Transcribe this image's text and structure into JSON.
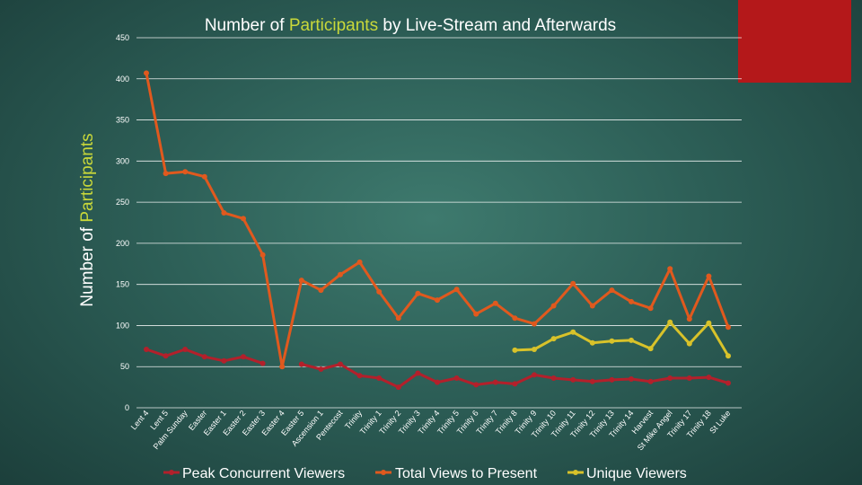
{
  "colors": {
    "peak": "#b3202b",
    "total": "#e0591e",
    "unique": "#d8c22a",
    "accent_text": "#c9d83a",
    "grid": "#ffffff"
  },
  "chart_data": {
    "type": "line",
    "title": "Number of Participants by Live-Stream and Afterwards",
    "title_parts": {
      "before": "Number of ",
      "highlight": "Participants",
      "after": " by Live-Stream and Afterwards"
    },
    "ylabel": "Number of Participants",
    "ylabel_parts": {
      "before": "Number of ",
      "highlight": "Participants"
    },
    "xlabel": "",
    "ylim": [
      0,
      450
    ],
    "yticks": [
      0,
      50,
      100,
      150,
      200,
      250,
      300,
      350,
      400,
      450
    ],
    "grid": true,
    "legend_position": "bottom",
    "categories": [
      "Lent 4",
      "Lent 5",
      "Palm Sunday",
      "Easter",
      "Easter 1",
      "Easter 2",
      "Easter 3",
      "Easter 4",
      "Easter 5",
      "Ascension 1",
      "Pentecost",
      "Trinity",
      "Trinity 1",
      "Trinity 2",
      "Trinity 3",
      "Trinity 4",
      "Trinity 5",
      "Trinity 6",
      "Trinity 7",
      "Trinity 8",
      "Trinity 9",
      "Trinity 10",
      "Trinity 11",
      "Trinity 12",
      "Trinity 13",
      "Trinity 14",
      "Harvest",
      "St Mike Angel",
      "Trinity 17",
      "Trinity 18",
      "St Luke"
    ],
    "series": [
      {
        "name": "Peak Concurrent Viewers",
        "color_key": "peak",
        "values": [
          71,
          63,
          71,
          62,
          57,
          62,
          54,
          null,
          53,
          47,
          53,
          39,
          36,
          25,
          42,
          31,
          36,
          28,
          31,
          29,
          40,
          36,
          34,
          32,
          34,
          35,
          32,
          36,
          36,
          37,
          30
        ]
      },
      {
        "name": "Total Views to Present",
        "color_key": "total",
        "values": [
          407,
          285,
          287,
          281,
          237,
          230,
          186,
          50,
          155,
          143,
          162,
          177,
          141,
          109,
          139,
          131,
          144,
          114,
          127,
          109,
          102,
          124,
          151,
          124,
          143,
          129,
          121,
          169,
          108,
          160,
          98
        ]
      },
      {
        "name": "Unique Viewers",
        "color_key": "unique",
        "values": [
          null,
          null,
          null,
          null,
          null,
          null,
          null,
          null,
          null,
          null,
          null,
          null,
          null,
          null,
          null,
          null,
          null,
          null,
          null,
          70,
          71,
          84,
          92,
          79,
          81,
          82,
          72,
          104,
          78,
          103,
          63
        ]
      }
    ]
  }
}
